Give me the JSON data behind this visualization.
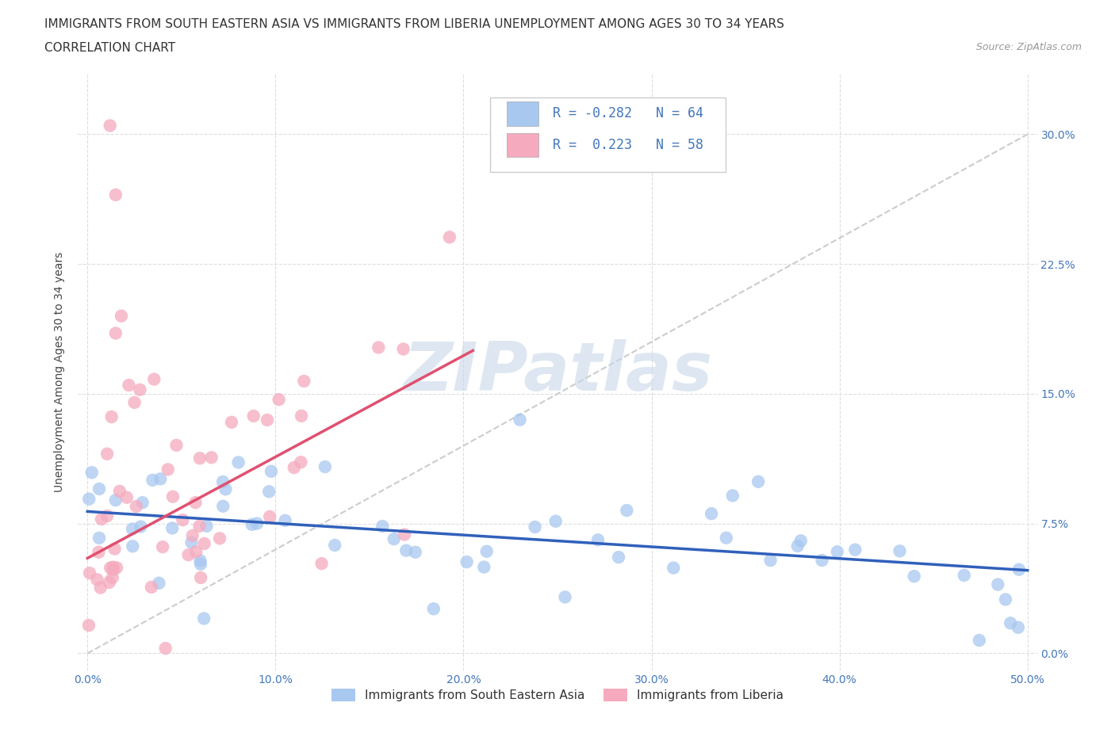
{
  "title_line1": "IMMIGRANTS FROM SOUTH EASTERN ASIA VS IMMIGRANTS FROM LIBERIA UNEMPLOYMENT AMONG AGES 30 TO 34 YEARS",
  "title_line2": "CORRELATION CHART",
  "source_text": "Source: ZipAtlas.com",
  "ylabel": "Unemployment Among Ages 30 to 34 years",
  "xlim": [
    -0.005,
    0.505
  ],
  "ylim": [
    -0.01,
    0.335
  ],
  "xticks": [
    0.0,
    0.1,
    0.2,
    0.3,
    0.4,
    0.5
  ],
  "xticklabels": [
    "0.0%",
    "10.0%",
    "20.0%",
    "30.0%",
    "40.0%",
    "50.0%"
  ],
  "yticks": [
    0.0,
    0.075,
    0.15,
    0.225,
    0.3
  ],
  "yticklabels": [
    "0.0%",
    "7.5%",
    "15.0%",
    "22.5%",
    "30.0%"
  ],
  "blue_R": -0.282,
  "blue_N": 64,
  "pink_R": 0.223,
  "pink_N": 58,
  "blue_color": "#A8C8F0",
  "pink_color": "#F5AABE",
  "blue_line_color": "#3060BB",
  "pink_line_color": "#E05070",
  "blue_label": "Immigrants from South Eastern Asia",
  "pink_label": "Immigrants from Liberia",
  "watermark": "ZIPatlas",
  "watermark_color": "#C8D8E8",
  "grid_color": "#DDDDDD",
  "axis_color": "#4477BB",
  "background_color": "#FFFFFF",
  "title_fontsize": 11,
  "axis_label_fontsize": 10,
  "tick_fontsize": 10,
  "source_fontsize": 9,
  "blue_trend": [
    0.0,
    0.5,
    0.082,
    0.048
  ],
  "pink_trend": [
    0.0,
    0.205,
    0.055,
    0.175
  ],
  "ref_line": [
    0.0,
    0.5,
    0.0,
    0.3
  ]
}
